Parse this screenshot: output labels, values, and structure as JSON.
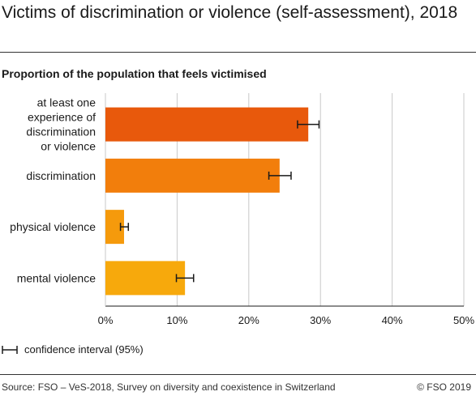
{
  "header": {
    "title": "Victims of discrimination or violence (self-assessment), 2018",
    "subtitle": "Proportion of the population that feels victimised"
  },
  "legend": {
    "ci_label": "confidence interval (95%)"
  },
  "footer": {
    "source": "Source: FSO – VeS-2018, Survey on diversity and coexistence in Switzerland",
    "copyright": "© FSO 2019"
  },
  "chart_data": {
    "type": "bar",
    "orientation": "horizontal",
    "categories": [
      "at least one experience of discrimination or violence",
      "discrimination",
      "physical violence",
      "mental violence"
    ],
    "category_lines": [
      [
        "at least one",
        "experience of",
        "discrimination",
        "or violence"
      ],
      [
        "discrimination"
      ],
      [
        "physical violence"
      ],
      [
        "mental violence"
      ]
    ],
    "values": [
      28.3,
      24.3,
      2.6,
      11.1
    ],
    "ci_low": [
      26.8,
      22.8,
      2.1,
      9.9
    ],
    "ci_high": [
      29.8,
      25.9,
      3.2,
      12.3
    ],
    "colors": [
      "#e8590c",
      "#f27e0c",
      "#f59a0c",
      "#f7a90c"
    ],
    "xlim": [
      0,
      50
    ],
    "xticks": [
      "0%",
      "10%",
      "20%",
      "30%",
      "40%",
      "50%"
    ],
    "grid": true,
    "legend_position": "bottom-left"
  }
}
